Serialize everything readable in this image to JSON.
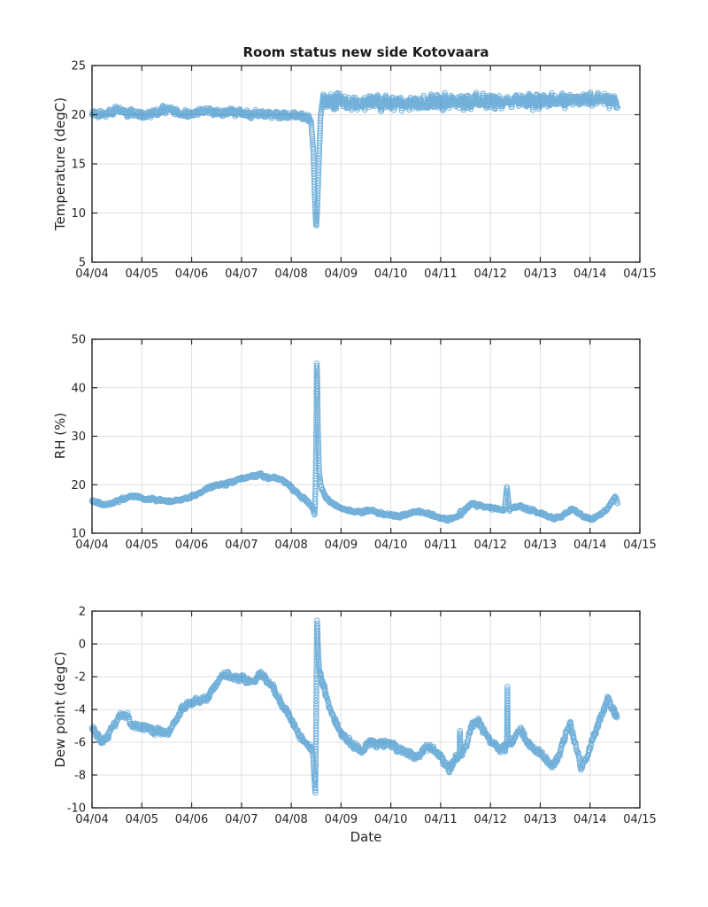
{
  "figure": {
    "title": "Room status new side Kotovaara",
    "xlabel": "Date",
    "background_color": "#ffffff",
    "axis_color": "#262626",
    "grid_color": "#e0e0e0",
    "accent_color": "#0072BD"
  },
  "chart_data": [
    {
      "type": "scatter",
      "marker": "open-circle",
      "title": "Room status new side Kotovaara",
      "ylabel": "Temperature (degC)",
      "ylim": [
        5,
        25
      ],
      "yticks": [
        5,
        10,
        15,
        20,
        25
      ],
      "xlim_days": [
        0,
        11
      ],
      "xtick_labels": [
        "04/04",
        "04/05",
        "04/06",
        "04/07",
        "04/08",
        "04/09",
        "04/10",
        "04/11",
        "04/12",
        "04/13",
        "04/14",
        "04/15"
      ],
      "grid": true,
      "series": [
        {
          "name": "temperature",
          "color": "#0072BD",
          "noise": {
            "base": 0.5,
            "segments": [
              [
                4.36,
                4.64,
                0.22
              ],
              [
                4.64,
                10.56,
                1.0
              ]
            ]
          },
          "points": [
            [
              0,
              20.1
            ],
            [
              0.25,
              20.0
            ],
            [
              0.45,
              20.4
            ],
            [
              0.55,
              20.6
            ],
            [
              0.68,
              20.2
            ],
            [
              0.9,
              20.0
            ],
            [
              1.05,
              19.95
            ],
            [
              1.3,
              20.2
            ],
            [
              1.45,
              20.55
            ],
            [
              1.62,
              20.4
            ],
            [
              1.8,
              20.1
            ],
            [
              2.0,
              20.15
            ],
            [
              2.2,
              20.45
            ],
            [
              2.4,
              20.3
            ],
            [
              2.6,
              20.2
            ],
            [
              2.85,
              20.3
            ],
            [
              3.1,
              20.1
            ],
            [
              3.35,
              20.15
            ],
            [
              3.6,
              20.0
            ],
            [
              3.9,
              19.95
            ],
            [
              4.15,
              19.9
            ],
            [
              4.32,
              19.8
            ],
            [
              4.4,
              19.3
            ],
            [
              4.44,
              16.5
            ],
            [
              4.47,
              12.0
            ],
            [
              4.5,
              8.2
            ],
            [
              4.53,
              11.5
            ],
            [
              4.56,
              16.0
            ],
            [
              4.59,
              20.0
            ],
            [
              4.63,
              21.3
            ],
            [
              4.75,
              21.4
            ],
            [
              5.2,
              21.2
            ],
            [
              5.8,
              21.25
            ],
            [
              6.4,
              21.2
            ],
            [
              7.0,
              21.3
            ],
            [
              7.6,
              21.3
            ],
            [
              8.2,
              21.35
            ],
            [
              8.8,
              21.4
            ],
            [
              9.4,
              21.45
            ],
            [
              9.9,
              21.5
            ],
            [
              10.25,
              21.55
            ],
            [
              10.45,
              21.5
            ],
            [
              10.55,
              21.1
            ]
          ]
        }
      ]
    },
    {
      "type": "scatter",
      "marker": "open-circle",
      "ylabel": "RH (%)",
      "ylim": [
        10,
        50
      ],
      "yticks": [
        10,
        20,
        30,
        40,
        50
      ],
      "xlim_days": [
        0,
        11
      ],
      "xtick_labels": [
        "04/04",
        "04/05",
        "04/06",
        "04/07",
        "04/08",
        "04/09",
        "04/10",
        "04/11",
        "04/12",
        "04/13",
        "04/14",
        "04/15"
      ],
      "grid": true,
      "series": [
        {
          "name": "relative-humidity",
          "color": "#0072BD",
          "noise": {
            "base": 0.45,
            "segments": [
              [
                4.46,
                4.6,
                0.15
              ],
              [
                8.3,
                8.37,
                0.15
              ]
            ]
          },
          "points": [
            [
              0,
              16.6
            ],
            [
              0.12,
              16.3
            ],
            [
              0.25,
              15.9
            ],
            [
              0.4,
              16.1
            ],
            [
              0.55,
              16.8
            ],
            [
              0.7,
              17.3
            ],
            [
              0.85,
              17.7
            ],
            [
              0.95,
              17.4
            ],
            [
              1.05,
              16.9
            ],
            [
              1.2,
              17.1
            ],
            [
              1.35,
              16.8
            ],
            [
              1.55,
              16.65
            ],
            [
              1.75,
              16.75
            ],
            [
              1.95,
              17.3
            ],
            [
              2.15,
              18.3
            ],
            [
              2.35,
              19.4
            ],
            [
              2.5,
              19.9
            ],
            [
              2.65,
              20.0
            ],
            [
              2.8,
              20.5
            ],
            [
              2.95,
              21.1
            ],
            [
              3.1,
              21.5
            ],
            [
              3.25,
              21.8
            ],
            [
              3.33,
              21.9
            ],
            [
              3.38,
              22.5
            ],
            [
              3.43,
              21.8
            ],
            [
              3.55,
              21.4
            ],
            [
              3.65,
              21.5
            ],
            [
              3.78,
              21.2
            ],
            [
              3.9,
              20.4
            ],
            [
              4.02,
              19.2
            ],
            [
              4.15,
              18.0
            ],
            [
              4.28,
              16.9
            ],
            [
              4.38,
              15.9
            ],
            [
              4.44,
              15.2
            ],
            [
              4.465,
              13.5
            ],
            [
              4.48,
              15.3
            ],
            [
              4.5,
              28.0
            ],
            [
              4.515,
              46.8
            ],
            [
              4.525,
              40.0
            ],
            [
              4.54,
              30.0
            ],
            [
              4.56,
              22.5
            ],
            [
              4.6,
              19.5
            ],
            [
              4.68,
              17.6
            ],
            [
              4.78,
              16.4
            ],
            [
              4.9,
              15.6
            ],
            [
              5.05,
              15.0
            ],
            [
              5.25,
              14.4
            ],
            [
              5.45,
              14.4
            ],
            [
              5.6,
              14.9
            ],
            [
              5.75,
              14.2
            ],
            [
              5.95,
              13.8
            ],
            [
              6.15,
              13.5
            ],
            [
              6.35,
              14.0
            ],
            [
              6.5,
              14.5
            ],
            [
              6.65,
              14.3
            ],
            [
              6.85,
              13.7
            ],
            [
              7.0,
              13.1
            ],
            [
              7.15,
              12.8
            ],
            [
              7.3,
              13.3
            ],
            [
              7.38,
              13.6
            ],
            [
              7.39,
              15.6
            ],
            [
              7.4,
              13.7
            ],
            [
              7.5,
              14.9
            ],
            [
              7.62,
              16.2
            ],
            [
              7.72,
              15.8
            ],
            [
              7.85,
              15.5
            ],
            [
              8.0,
              15.3
            ],
            [
              8.15,
              15.0
            ],
            [
              8.28,
              14.8
            ],
            [
              8.33,
              19.6
            ],
            [
              8.38,
              14.9
            ],
            [
              8.5,
              15.5
            ],
            [
              8.6,
              15.6
            ],
            [
              8.72,
              15.0
            ],
            [
              8.85,
              14.7
            ],
            [
              9.0,
              14.1
            ],
            [
              9.15,
              13.5
            ],
            [
              9.27,
              13.1
            ],
            [
              9.4,
              13.4
            ],
            [
              9.55,
              14.3
            ],
            [
              9.62,
              15.0
            ],
            [
              9.75,
              14.3
            ],
            [
              9.9,
              13.3
            ],
            [
              10.0,
              12.9
            ],
            [
              10.12,
              13.3
            ],
            [
              10.25,
              14.2
            ],
            [
              10.38,
              15.5
            ],
            [
              10.47,
              17.0
            ],
            [
              10.51,
              17.5
            ],
            [
              10.55,
              16.2
            ]
          ]
        }
      ]
    },
    {
      "type": "scatter",
      "marker": "open-circle",
      "ylabel": "Dew point (degC)",
      "xlabel": "Date",
      "ylim": [
        -10,
        2
      ],
      "yticks": [
        -10,
        -8,
        -6,
        -4,
        -2,
        0,
        2
      ],
      "xlim_days": [
        0,
        11
      ],
      "xtick_labels": [
        "04/04",
        "04/05",
        "04/06",
        "04/07",
        "04/08",
        "04/09",
        "04/10",
        "04/11",
        "04/12",
        "04/13",
        "04/14",
        "04/15"
      ],
      "grid": true,
      "series": [
        {
          "name": "dew-point",
          "color": "#0072BD",
          "noise": {
            "base": 0.3,
            "segments": [
              [
                4.43,
                4.58,
                0.12
              ],
              [
                7.37,
                7.41,
                0.12
              ],
              [
                8.31,
                8.37,
                0.12
              ]
            ]
          },
          "points": [
            [
              0,
              -5.1
            ],
            [
              0.1,
              -5.55
            ],
            [
              0.2,
              -5.95
            ],
            [
              0.3,
              -5.7
            ],
            [
              0.42,
              -5.0
            ],
            [
              0.52,
              -4.5
            ],
            [
              0.62,
              -4.2
            ],
            [
              0.72,
              -4.45
            ],
            [
              0.82,
              -5.1
            ],
            [
              0.92,
              -5.0
            ],
            [
              1.0,
              -5.15
            ],
            [
              1.1,
              -5.0
            ],
            [
              1.2,
              -5.35
            ],
            [
              1.35,
              -5.3
            ],
            [
              1.5,
              -5.45
            ],
            [
              1.6,
              -5.1
            ],
            [
              1.7,
              -4.55
            ],
            [
              1.8,
              -4.0
            ],
            [
              1.95,
              -3.65
            ],
            [
              2.1,
              -3.45
            ],
            [
              2.3,
              -3.35
            ],
            [
              2.42,
              -2.8
            ],
            [
              2.52,
              -2.35
            ],
            [
              2.62,
              -1.95
            ],
            [
              2.72,
              -1.85
            ],
            [
              2.82,
              -2.05
            ],
            [
              3.0,
              -2.1
            ],
            [
              3.15,
              -2.3
            ],
            [
              3.3,
              -2.2
            ],
            [
              3.38,
              -1.75
            ],
            [
              3.45,
              -2.05
            ],
            [
              3.6,
              -2.5
            ],
            [
              3.72,
              -3.2
            ],
            [
              3.85,
              -3.9
            ],
            [
              4.0,
              -4.6
            ],
            [
              4.12,
              -5.4
            ],
            [
              4.25,
              -6.0
            ],
            [
              4.38,
              -6.35
            ],
            [
              4.43,
              -6.5
            ],
            [
              4.46,
              -8.0
            ],
            [
              4.485,
              -9.25
            ],
            [
              4.5,
              -5.0
            ],
            [
              4.515,
              1.5
            ],
            [
              4.525,
              1.2
            ],
            [
              4.54,
              -0.5
            ],
            [
              4.56,
              -1.6
            ],
            [
              4.62,
              -2.2
            ],
            [
              4.72,
              -3.4
            ],
            [
              4.82,
              -4.3
            ],
            [
              4.95,
              -5.2
            ],
            [
              5.1,
              -5.8
            ],
            [
              5.25,
              -6.2
            ],
            [
              5.42,
              -6.55
            ],
            [
              5.58,
              -5.9
            ],
            [
              5.7,
              -6.1
            ],
            [
              5.85,
              -6.05
            ],
            [
              6.0,
              -6.15
            ],
            [
              6.15,
              -6.4
            ],
            [
              6.3,
              -6.6
            ],
            [
              6.45,
              -6.8
            ],
            [
              6.55,
              -6.9
            ],
            [
              6.7,
              -6.3
            ],
            [
              6.8,
              -6.35
            ],
            [
              6.95,
              -6.7
            ],
            [
              7.17,
              -7.7
            ],
            [
              7.3,
              -7.0
            ],
            [
              7.38,
              -6.8
            ],
            [
              7.39,
              -4.7
            ],
            [
              7.4,
              -6.8
            ],
            [
              7.5,
              -6.3
            ],
            [
              7.58,
              -5.5
            ],
            [
              7.65,
              -4.8
            ],
            [
              7.72,
              -4.7
            ],
            [
              7.8,
              -5.0
            ],
            [
              7.9,
              -5.5
            ],
            [
              8.0,
              -5.9
            ],
            [
              8.1,
              -6.2
            ],
            [
              8.2,
              -6.5
            ],
            [
              8.28,
              -6.3
            ],
            [
              8.33,
              -6.2
            ],
            [
              8.34,
              -2.45
            ],
            [
              8.35,
              -6.2
            ],
            [
              8.45,
              -5.9
            ],
            [
              8.6,
              -5.2
            ],
            [
              8.75,
              -6.0
            ],
            [
              8.85,
              -6.4
            ],
            [
              9.0,
              -6.7
            ],
            [
              9.1,
              -7.0
            ],
            [
              9.25,
              -7.45
            ],
            [
              9.4,
              -6.6
            ],
            [
              9.5,
              -5.6
            ],
            [
              9.58,
              -4.9
            ],
            [
              9.62,
              -5.1
            ],
            [
              9.72,
              -6.3
            ],
            [
              9.82,
              -7.55
            ],
            [
              9.95,
              -6.8
            ],
            [
              10.03,
              -5.9
            ],
            [
              10.15,
              -5.0
            ],
            [
              10.25,
              -4.2
            ],
            [
              10.36,
              -3.35
            ],
            [
              10.45,
              -3.9
            ],
            [
              10.54,
              -4.5
            ]
          ]
        }
      ]
    }
  ]
}
